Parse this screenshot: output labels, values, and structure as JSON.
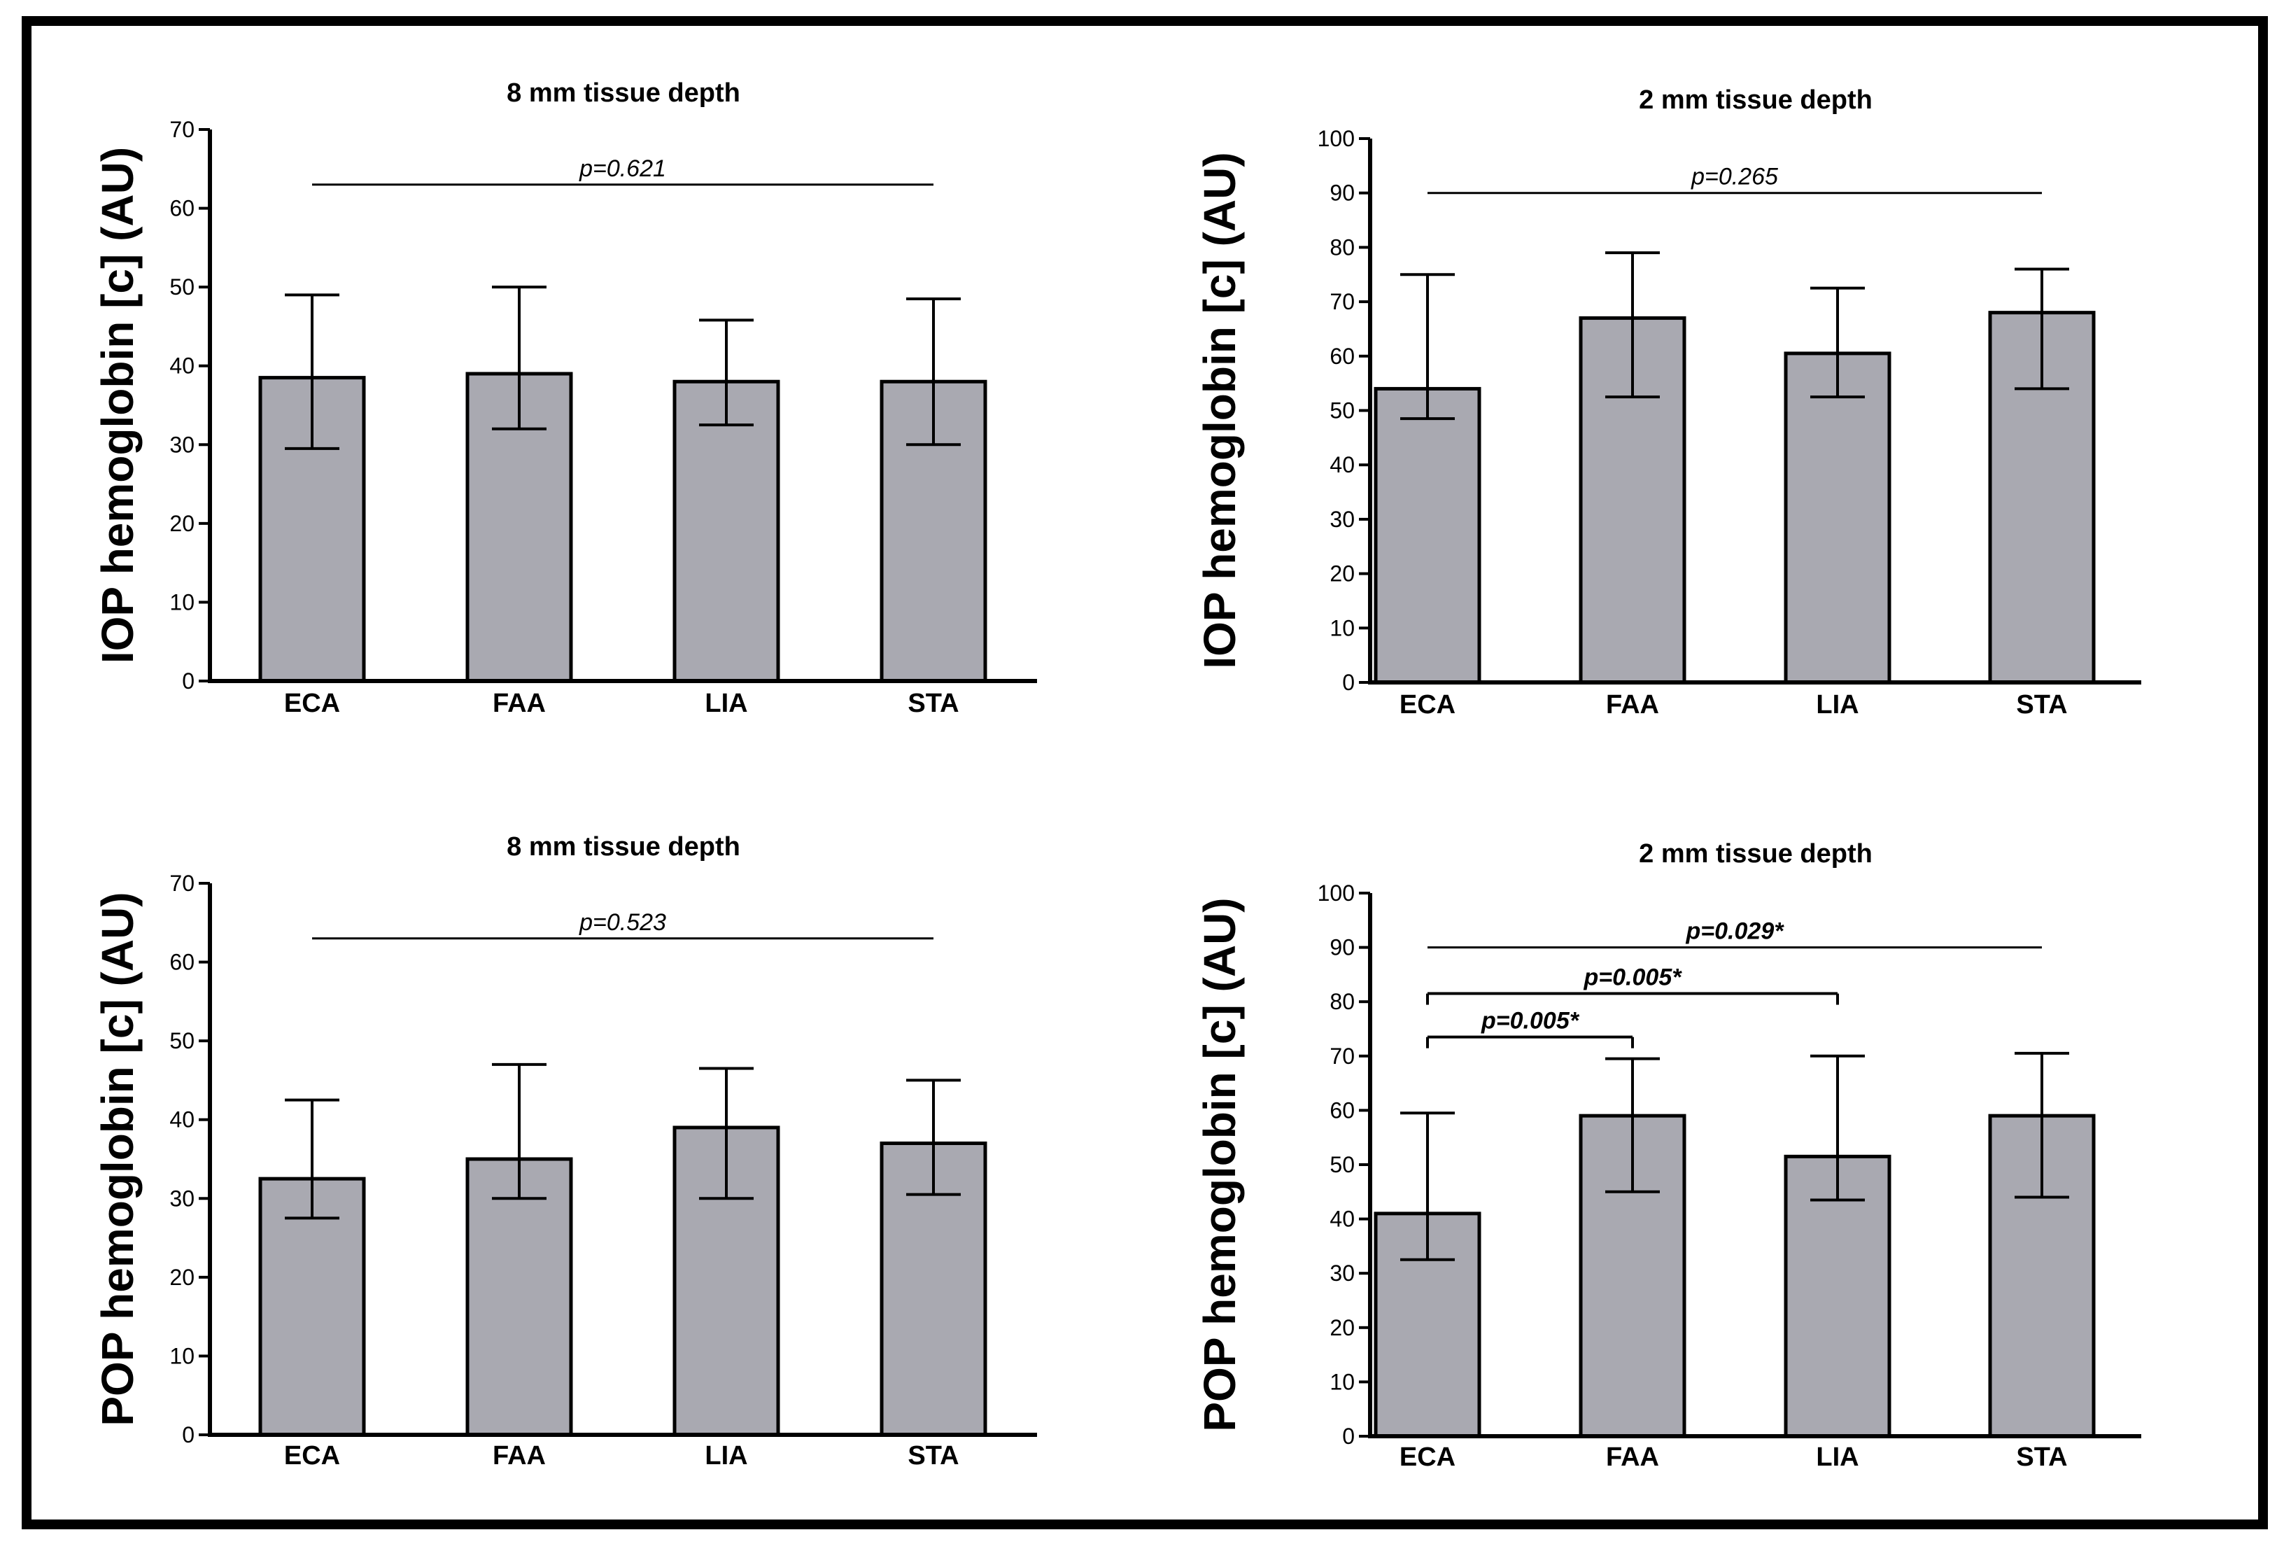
{
  "chart_data": [
    {
      "type": "bar",
      "title": "8 mm tissue depth",
      "ylabel": "IOP hemoglobin [c] (AU)",
      "xlabel": "",
      "categories": [
        "ECA",
        "FAA",
        "LIA",
        "STA"
      ],
      "values": [
        38.5,
        39,
        38,
        38
      ],
      "error_low": [
        29.5,
        32,
        32.5,
        30
      ],
      "error_high": [
        49,
        50,
        45.8,
        48.5
      ],
      "ylim": [
        0,
        70
      ],
      "yticks": [
        0,
        10,
        20,
        30,
        40,
        50,
        60,
        70
      ],
      "bar_color": "#a9a9b1",
      "annotations": [
        {
          "label": "p=0.621",
          "from": "ECA",
          "to": "STA",
          "y": 63,
          "bracket": false,
          "bold": false
        }
      ]
    },
    {
      "type": "bar",
      "title": "2 mm tissue depth",
      "ylabel": "IOP hemoglobin [c] (AU)",
      "xlabel": "",
      "categories": [
        "ECA",
        "FAA",
        "LIA",
        "STA"
      ],
      "values": [
        54,
        67,
        60.5,
        68
      ],
      "error_low": [
        48.5,
        52.5,
        52.5,
        54
      ],
      "error_high": [
        75,
        79,
        72.5,
        76
      ],
      "ylim": [
        0,
        100
      ],
      "yticks": [
        0,
        10,
        20,
        30,
        40,
        50,
        60,
        70,
        80,
        90,
        100
      ],
      "bar_color": "#a9a9b1",
      "annotations": [
        {
          "label": "p=0.265",
          "from": "ECA",
          "to": "STA",
          "y": 90,
          "bracket": false,
          "bold": false
        }
      ]
    },
    {
      "type": "bar",
      "title": "8 mm tissue depth",
      "ylabel": "POP hemoglobin [c] (AU)",
      "xlabel": "",
      "categories": [
        "ECA",
        "FAA",
        "LIA",
        "STA"
      ],
      "values": [
        32.5,
        35,
        39,
        37
      ],
      "error_low": [
        27.5,
        30,
        30,
        30.5
      ],
      "error_high": [
        42.5,
        47,
        46.5,
        45
      ],
      "ylim": [
        0,
        70
      ],
      "yticks": [
        0,
        10,
        20,
        30,
        40,
        50,
        60,
        70
      ],
      "bar_color": "#a9a9b1",
      "annotations": [
        {
          "label": "p=0.523",
          "from": "ECA",
          "to": "STA",
          "y": 63,
          "bracket": false,
          "bold": false
        }
      ]
    },
    {
      "type": "bar",
      "title": "2 mm tissue depth",
      "ylabel": "POP hemoglobin [c] (AU)",
      "xlabel": "",
      "categories": [
        "ECA",
        "FAA",
        "LIA",
        "STA"
      ],
      "values": [
        41,
        59,
        51.5,
        59
      ],
      "error_low": [
        32.5,
        45,
        43.5,
        44
      ],
      "error_high": [
        59.5,
        69.5,
        70,
        70.5
      ],
      "ylim": [
        0,
        100
      ],
      "yticks": [
        0,
        10,
        20,
        30,
        40,
        50,
        60,
        70,
        80,
        90,
        100
      ],
      "bar_color": "#a9a9b1",
      "annotations": [
        {
          "label": "p=0.029*",
          "from": "ECA",
          "to": "STA",
          "y": 90,
          "bracket": false,
          "bold": true
        },
        {
          "label": "p=0.005*",
          "from": "ECA",
          "to": "LIA",
          "y": 81.5,
          "bracket": true,
          "bold": true
        },
        {
          "label": "p=0.005*",
          "from": "ECA",
          "to": "FAA",
          "y": 73.5,
          "bracket": true,
          "bold": true
        }
      ]
    }
  ]
}
